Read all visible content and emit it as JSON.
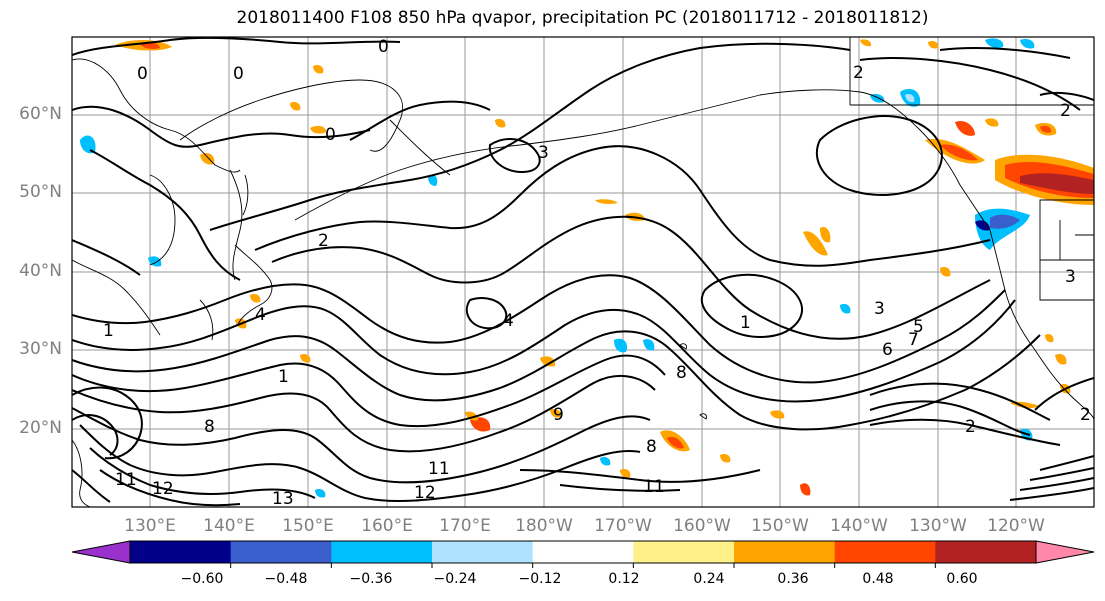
{
  "title": "2018011400 F108 850 hPa qvapor, precipitation PC (2018011712 - 2018011812)",
  "lat_labels": [
    "60°N",
    "50°N",
    "40°N",
    "30°N",
    "20°N"
  ],
  "lon_labels": [
    "130°E",
    "140°E",
    "150°E",
    "160°E",
    "170°E",
    "180°W",
    "170°W",
    "160°W",
    "150°W",
    "140°W",
    "130°W",
    "120°W"
  ],
  "colorbar": {
    "colors": [
      "#9932cc",
      "#00008b",
      "#3a5fcd",
      "#00bfff",
      "#b0e2ff",
      "#ffffff",
      "#fff08a",
      "#ffa500",
      "#ff4500",
      "#b22222",
      "#ff88aa"
    ],
    "tick_labels": [
      "−0.60",
      "−0.48",
      "−0.36",
      "−0.24",
      "−0.12",
      "0.12",
      "0.24",
      "0.36",
      "0.48",
      "0.60"
    ]
  },
  "contour_labels": [
    "0",
    "0",
    "0",
    "0",
    "2",
    "2",
    "2",
    "2",
    "2",
    "3",
    "3",
    "3",
    "4",
    "4",
    "1",
    "1",
    "1",
    "8",
    "8",
    "8",
    "11",
    "11",
    "11",
    "12",
    "12",
    "13",
    "5",
    "7",
    "6",
    "9"
  ]
}
